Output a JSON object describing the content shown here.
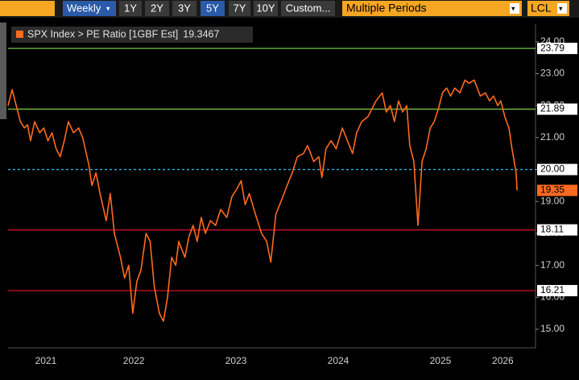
{
  "toolbar": {
    "period": "Weekly",
    "ranges": [
      "1Y",
      "2Y",
      "3Y",
      "5Y",
      "7Y",
      "10Y",
      "Custom..."
    ],
    "active_range": 3,
    "mode": "Multiple Periods",
    "currency": "LCL"
  },
  "chart_data": {
    "type": "line",
    "x": [
      2021.27,
      2021.31,
      2021.35,
      2021.39,
      2021.43,
      2021.46,
      2021.49,
      2021.53,
      2021.58,
      2021.62,
      2021.66,
      2021.7,
      2021.74,
      2021.78,
      2021.82,
      2021.86,
      2021.91,
      2021.96,
      2022.0,
      2022.06,
      2022.09,
      2022.13,
      2022.17,
      2022.23,
      2022.27,
      2022.31,
      2022.37,
      2022.41,
      2022.45,
      2022.49,
      2022.53,
      2022.57,
      2022.62,
      2022.66,
      2022.7,
      2022.75,
      2022.79,
      2022.83,
      2022.87,
      2022.91,
      2022.94,
      2023.0,
      2023.04,
      2023.08,
      2023.12,
      2023.16,
      2023.2,
      2023.25,
      2023.3,
      2023.35,
      2023.41,
      2023.46,
      2023.51,
      2023.55,
      2023.59,
      2023.63,
      2023.69,
      2023.75,
      2023.8,
      2023.84,
      2023.89,
      2023.94,
      2024.0,
      2024.05,
      2024.1,
      2024.16,
      2024.2,
      2024.26,
      2024.31,
      2024.34,
      2024.38,
      2024.43,
      2024.48,
      2024.54,
      2024.59,
      2024.64,
      2024.68,
      2024.73,
      2024.79,
      2024.83,
      2024.87,
      2024.93,
      2024.97,
      2025.01,
      2025.05,
      2025.09,
      2025.13,
      2025.17,
      2025.2,
      2025.24,
      2025.28,
      2025.32,
      2025.36,
      2025.4,
      2025.44,
      2025.48,
      2025.52,
      2025.56,
      2025.6,
      2025.64,
      2025.69,
      2025.74,
      2025.78,
      2025.83,
      2025.89,
      2025.94,
      2025.98,
      2026.02,
      2026.06,
      2026.09,
      2026.13,
      2026.17,
      2026.2,
      2026.24,
      2026.25
    ],
    "series": [
      {
        "name": "SPX Index > PE Ratio [1GBF Est]",
        "color": "#ff6a1f",
        "values": [
          22.0,
          22.5,
          22.0,
          21.5,
          21.3,
          21.4,
          20.9,
          21.5,
          21.15,
          21.3,
          20.9,
          21.15,
          20.65,
          20.4,
          20.9,
          21.5,
          21.15,
          21.3,
          21.0,
          20.15,
          19.5,
          19.9,
          19.25,
          18.4,
          19.25,
          18.0,
          17.25,
          16.6,
          17.0,
          15.5,
          16.5,
          16.85,
          18.0,
          17.75,
          16.35,
          15.5,
          15.25,
          16.0,
          17.25,
          17.0,
          17.75,
          17.25,
          17.9,
          18.25,
          17.75,
          18.5,
          18.0,
          18.4,
          18.25,
          18.75,
          18.5,
          19.15,
          19.4,
          19.65,
          18.9,
          19.25,
          18.6,
          18.0,
          17.75,
          17.1,
          18.6,
          19.0,
          19.5,
          19.9,
          20.4,
          20.5,
          20.75,
          20.25,
          20.4,
          19.75,
          20.65,
          20.9,
          20.65,
          21.3,
          20.9,
          20.5,
          21.15,
          21.5,
          21.65,
          21.9,
          22.15,
          22.4,
          21.8,
          22.0,
          21.5,
          22.15,
          21.8,
          22.0,
          20.75,
          20.25,
          18.25,
          20.25,
          20.65,
          21.3,
          21.5,
          21.9,
          22.4,
          22.55,
          22.3,
          22.55,
          22.4,
          22.8,
          22.7,
          22.8,
          22.3,
          22.4,
          22.15,
          22.3,
          22.0,
          22.15,
          21.65,
          21.3,
          20.65,
          19.9,
          19.3467
        ],
        "value_labels": [
          null,
          null,
          null,
          null,
          null,
          null,
          null,
          null,
          null,
          null,
          null,
          null,
          null,
          null,
          null,
          null,
          null,
          null,
          null,
          null,
          null,
          null,
          null,
          null,
          null,
          null,
          null,
          null,
          null,
          null,
          null,
          null,
          null,
          null,
          null,
          null,
          null,
          null,
          null,
          null,
          null,
          null,
          null,
          null,
          null,
          null,
          null,
          null,
          null,
          null,
          null,
          null,
          null,
          null,
          null,
          null,
          null,
          null,
          null,
          null,
          null,
          null,
          null,
          null,
          null,
          null,
          null,
          null,
          null,
          null,
          null,
          null,
          null,
          null,
          null,
          null,
          null,
          null,
          null,
          null,
          null,
          null,
          null,
          null,
          null,
          null,
          null,
          null,
          null,
          null,
          null,
          null,
          null,
          null,
          null,
          null,
          null,
          null,
          null,
          null,
          null,
          null,
          null,
          null,
          null,
          null,
          null,
          null,
          null,
          null,
          null,
          null,
          null,
          null,
          "19.35"
        ]
      }
    ],
    "xlim": [
      2021.27,
      2026.43
    ],
    "xticks": [
      {
        "value": 2021.64,
        "label": "2021"
      },
      {
        "value": 2022.5,
        "label": "2022"
      },
      {
        "value": 2023.5,
        "label": "2023"
      },
      {
        "value": 2024.5,
        "label": "2024"
      },
      {
        "value": 2025.5,
        "label": "2025"
      },
      {
        "value": 2026.11,
        "label": "2026"
      }
    ],
    "ylim": [
      14.42,
      24.55
    ],
    "yticks": [
      {
        "value": 15,
        "label": "15.00"
      },
      {
        "value": 16,
        "label": "16.00"
      },
      {
        "value": 17,
        "label": "17.00"
      },
      {
        "value": 18,
        "label": "18.00"
      },
      {
        "value": 19,
        "label": "19.00"
      },
      {
        "value": 20,
        "label": "20.00"
      },
      {
        "value": 21,
        "label": "21.00"
      },
      {
        "value": 22,
        "label": "22.00"
      },
      {
        "value": 23,
        "label": "23.00"
      },
      {
        "value": 24,
        "label": "24.00"
      }
    ],
    "hlines": [
      {
        "value": 23.79,
        "color": "#78c042",
        "style": "solid"
      },
      {
        "value": 21.89,
        "color": "#78c042",
        "style": "solid"
      },
      {
        "value": 20,
        "label": "20.00",
        "color": "#2ab7e8",
        "style": "dashed"
      },
      {
        "value": 18.11,
        "color": "#d0102a",
        "style": "solid"
      },
      {
        "value": 16.21,
        "color": "#d0102a",
        "style": "solid"
      }
    ],
    "grid": false
  }
}
